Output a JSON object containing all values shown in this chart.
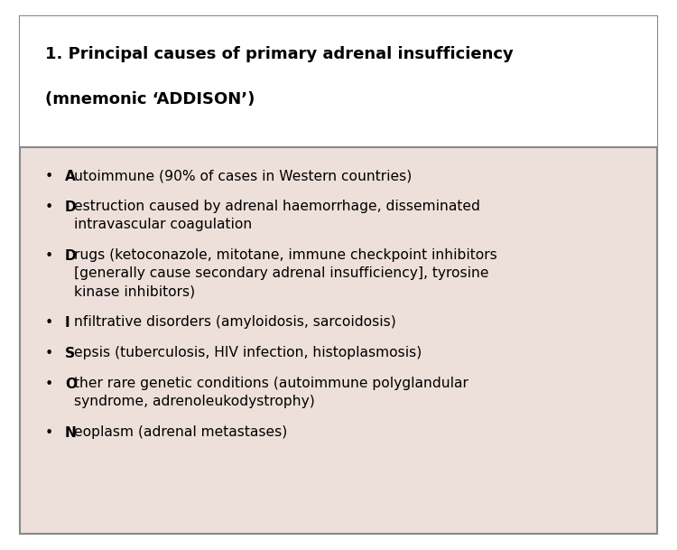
{
  "title_line1": "1. Principal causes of primary adrenal insufficiency",
  "title_line2": "(mnemonic ‘ADDISON’)",
  "title_bg": "#ffffff",
  "body_bg": "#ede0db",
  "border_color": "#888888",
  "title_color": "#000000",
  "bullet_color": "#000000",
  "bullet_items": [
    {
      "bold_part": "A",
      "rest": "utoimmune (90% of cases in Western countries)",
      "extra_lines": []
    },
    {
      "bold_part": "D",
      "rest": "estruction caused by adrenal haemorrhage, disseminated",
      "extra_lines": [
        "intravascular coagulation"
      ]
    },
    {
      "bold_part": "D",
      "rest": "rugs (ketoconazole, mitotane, immune checkpoint inhibitors",
      "extra_lines": [
        "[generally cause secondary adrenal insufficiency], tyrosine",
        "kinase inhibitors)"
      ]
    },
    {
      "bold_part": "I",
      "rest": "nfiltrative disorders (amyloidosis, sarcoidosis)",
      "extra_lines": []
    },
    {
      "bold_part": "S",
      "rest": "epsis (tuberculosis, HIV infection, histoplasmosis)",
      "extra_lines": []
    },
    {
      "bold_part": "O",
      "rest": "ther rare genetic conditions (autoimmune polyglandular",
      "extra_lines": [
        "syndrome, adrenoleukodystrophy)"
      ]
    },
    {
      "bold_part": "N",
      "rest": "eoplasm (adrenal metastases)",
      "extra_lines": []
    }
  ],
  "fig_width": 7.5,
  "fig_height": 6.09,
  "dpi": 100,
  "title_fontsize": 13.0,
  "body_fontsize": 11.2,
  "outer_border_linewidth": 1.5
}
